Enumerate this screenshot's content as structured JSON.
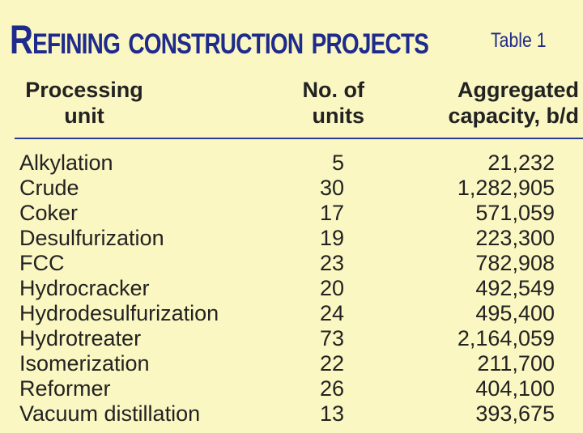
{
  "title": "Refining construction projects",
  "table_label": "Table 1",
  "headers": {
    "unit_line1": "Processing",
    "unit_line2": "unit",
    "num_line1": "No. of",
    "num_line2": "units",
    "cap_line1": "Aggregated",
    "cap_line2": "capacity, b/d"
  },
  "rows": [
    {
      "unit": "Alkylation",
      "num": "5",
      "cap": "21,232"
    },
    {
      "unit": "Crude",
      "num": "30",
      "cap": "1,282,905"
    },
    {
      "unit": "Coker",
      "num": "17",
      "cap": "571,059"
    },
    {
      "unit": "Desulfurization",
      "num": "19",
      "cap": "223,300"
    },
    {
      "unit": "FCC",
      "num": "23",
      "cap": "782,908"
    },
    {
      "unit": "Hydrocracker",
      "num": "20",
      "cap": "492,549"
    },
    {
      "unit": "Hydrodesulfurization",
      "num": "24",
      "cap": "495,400"
    },
    {
      "unit": "Hydrotreater",
      "num": "73",
      "cap": "2,164,059"
    },
    {
      "unit": "Isomerization",
      "num": "22",
      "cap": "211,700"
    },
    {
      "unit": "Reformer",
      "num": "26",
      "cap": "404,100"
    },
    {
      "unit": "Vacuum distillation",
      "num": "13",
      "cap": "393,675"
    }
  ],
  "colors": {
    "background": "#fbf7c2",
    "title": "#1f2b8c",
    "rule": "#2b3a94"
  }
}
